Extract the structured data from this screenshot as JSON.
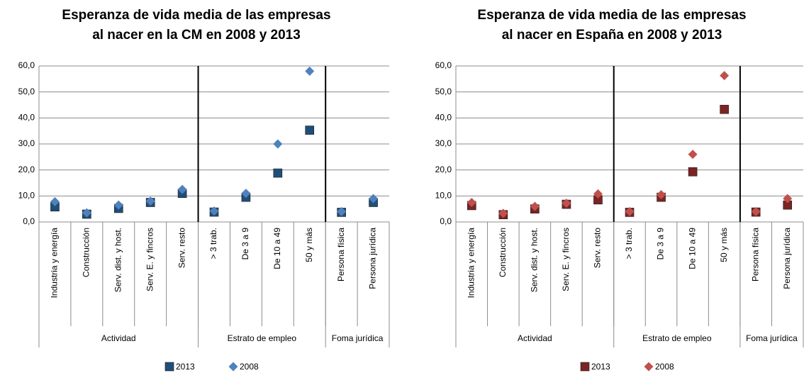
{
  "chart_data": [
    {
      "type": "dot",
      "title": [
        "Esperanza de vida media de las empresas",
        "al nacer en la CM en 2008 y 2013"
      ],
      "groups": [
        {
          "name": "Actividad",
          "categories": [
            "Industria y energía",
            "Construcción",
            "Serv. dist. y host.",
            "Serv. E. y fincros",
            "Serv. resto"
          ]
        },
        {
          "name": "Estrato de empleo",
          "categories": [
            "> 3 trab.",
            "De 3 a 9",
            "De 10 a 49",
            "50 y más"
          ]
        },
        {
          "name": "Foma jurídica",
          "categories": [
            "Persona física",
            "Persona jurídica"
          ]
        }
      ],
      "series": [
        {
          "name": "2013",
          "color": "#1f4e79",
          "marker": "square",
          "values": [
            5.8,
            3.0,
            5.2,
            7.5,
            11.0,
            3.8,
            9.5,
            18.8,
            35.3,
            3.7,
            7.5
          ]
        },
        {
          "name": "2008",
          "color": "#4f81bd",
          "marker": "diamond",
          "values": [
            7.8,
            3.5,
            6.5,
            8.0,
            12.5,
            4.2,
            11.0,
            30.0,
            58.0,
            4.0,
            9.0
          ]
        }
      ],
      "ylim": [
        0,
        60
      ],
      "yticks": [
        {
          "value": 0,
          "label": "0,0"
        },
        {
          "value": 10,
          "label": "10,0"
        },
        {
          "value": 20,
          "label": "20,0"
        },
        {
          "value": 30,
          "label": "30,0"
        },
        {
          "value": 40,
          "label": "40,0"
        },
        {
          "value": 50,
          "label": "50,0"
        },
        {
          "value": 60,
          "label": "60,0"
        }
      ],
      "grid": true
    },
    {
      "type": "dot",
      "title": [
        "Esperanza de vida media de las empresas",
        "al nacer en España en 2008 y 2013"
      ],
      "groups": [
        {
          "name": "Actividad",
          "categories": [
            "Industria y energía",
            "Construcción",
            "Serv. dist. y host.",
            "Serv. E. y fincros",
            "Serv. resto"
          ]
        },
        {
          "name": "Estrato de empleo",
          "categories": [
            "> 3 trab.",
            "De 3 a 9",
            "De 10 a 49",
            "50 y más"
          ]
        },
        {
          "name": "Foma jurídica",
          "categories": [
            "Persona física",
            "Persona jurídica"
          ]
        }
      ],
      "series": [
        {
          "name": "2013",
          "color": "#7b2424",
          "marker": "square",
          "values": [
            6.3,
            2.8,
            5.0,
            6.8,
            8.5,
            3.7,
            9.5,
            19.3,
            43.3,
            3.8,
            6.5
          ]
        },
        {
          "name": "2008",
          "color": "#c0504d",
          "marker": "diamond",
          "values": [
            7.5,
            3.3,
            6.0,
            7.2,
            10.8,
            4.0,
            10.5,
            26.0,
            56.3,
            4.0,
            9.0
          ]
        }
      ],
      "ylim": [
        0,
        60
      ],
      "yticks": [
        {
          "value": 0,
          "label": "0,0"
        },
        {
          "value": 10,
          "label": "10,0"
        },
        {
          "value": 20,
          "label": "20,0"
        },
        {
          "value": 30,
          "label": "30,0"
        },
        {
          "value": 40,
          "label": "40,0"
        },
        {
          "value": 50,
          "label": "50,0"
        },
        {
          "value": 60,
          "label": "60,0"
        }
      ],
      "grid": true
    }
  ]
}
